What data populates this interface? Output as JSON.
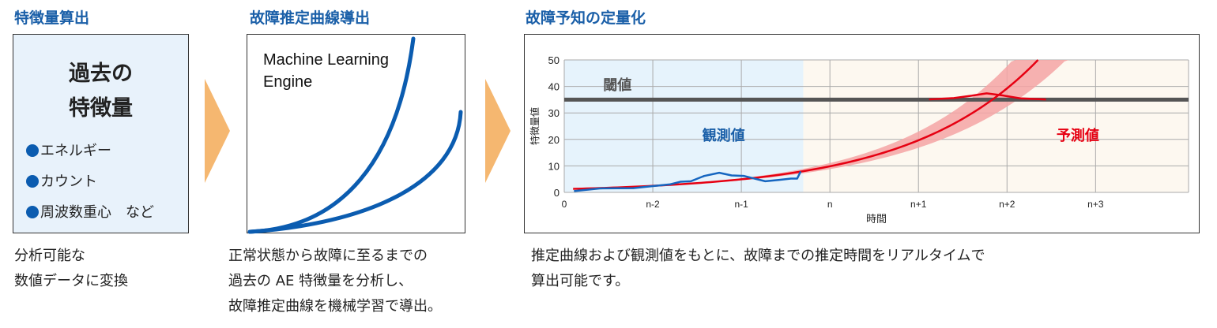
{
  "steps": [
    {
      "title": "特徴量算出",
      "box_heading_1": "過去の",
      "box_heading_2": "特徴量",
      "items": [
        "エネルギー",
        "カウント",
        "周波数重心　など"
      ],
      "caption": [
        "分析可能な",
        "数値データに変換"
      ]
    },
    {
      "title": "故障推定曲線導出",
      "box_text_1": "Machine Learning",
      "box_text_2": "Engine",
      "caption": [
        "正常状態から故障に至るまでの",
        "過去の AE 特徴量を分析し、",
        "故障推定曲線を機械学習で導出。"
      ]
    },
    {
      "title": "故障予知の定量化",
      "caption": [
        "推定曲線および観測値をもとに、故障までの推定時間をリアルタイムで",
        "算出可能です。"
      ]
    }
  ],
  "colors": {
    "title": "#1a5fa8",
    "arrow": "#f5b770",
    "observed": "#1565c0",
    "predicted": "#e60012",
    "band": "#f4a5a5",
    "threshold": "#555555"
  },
  "chart_data": {
    "type": "line",
    "xlabel": "時間",
    "ylabel": "特徴量値",
    "xlim": [
      0,
      7.05
    ],
    "ylim": [
      0,
      50
    ],
    "x_ticks": [
      0,
      1,
      2,
      3,
      4,
      5,
      6
    ],
    "x_tick_labels": [
      "0",
      "n-2",
      "n-1",
      "n",
      "n+1",
      "n+2",
      "n+3"
    ],
    "y_ticks": [
      0,
      10,
      20,
      30,
      40,
      50
    ],
    "grid": true,
    "observed_region_end": 2.7,
    "threshold": {
      "value": 35,
      "label": "閾値",
      "label_pos": [
        0.6,
        41
      ]
    },
    "region_labels": [
      {
        "text": "観測値",
        "pos": [
          1.8,
          22
        ],
        "color": "#1a5fa8"
      },
      {
        "text": "予測値",
        "pos": [
          5.8,
          22
        ],
        "color": "#e60012"
      }
    ],
    "observed": {
      "name": "観測値",
      "x": [
        0.11,
        0.4,
        0.78,
        0.98,
        1.19,
        1.31,
        1.43,
        1.58,
        1.75,
        1.89,
        2.03,
        2.15,
        2.27,
        2.42,
        2.56,
        2.63,
        2.67
      ],
      "y": [
        0.5,
        1.5,
        1.6,
        2.3,
        3,
        4,
        4.2,
        6.2,
        7.4,
        6.4,
        6.2,
        5.2,
        4.2,
        4.7,
        5.2,
        5.2,
        7.9
      ]
    },
    "predicted": {
      "name": "予測値",
      "model": "y = 1.24·exp(0.691·x)",
      "x_range": [
        0.1,
        5.35
      ]
    },
    "confidence_band": {
      "x_start": 1.5,
      "relative_x_spread": 0.056
    },
    "failure_distribution": {
      "x": [
        4.12,
        4.4,
        4.6,
        4.77,
        4.95,
        5.15,
        5.44
      ],
      "y": [
        35.1,
        35.6,
        36.5,
        37.4,
        36.6,
        35.5,
        35.1
      ]
    }
  }
}
